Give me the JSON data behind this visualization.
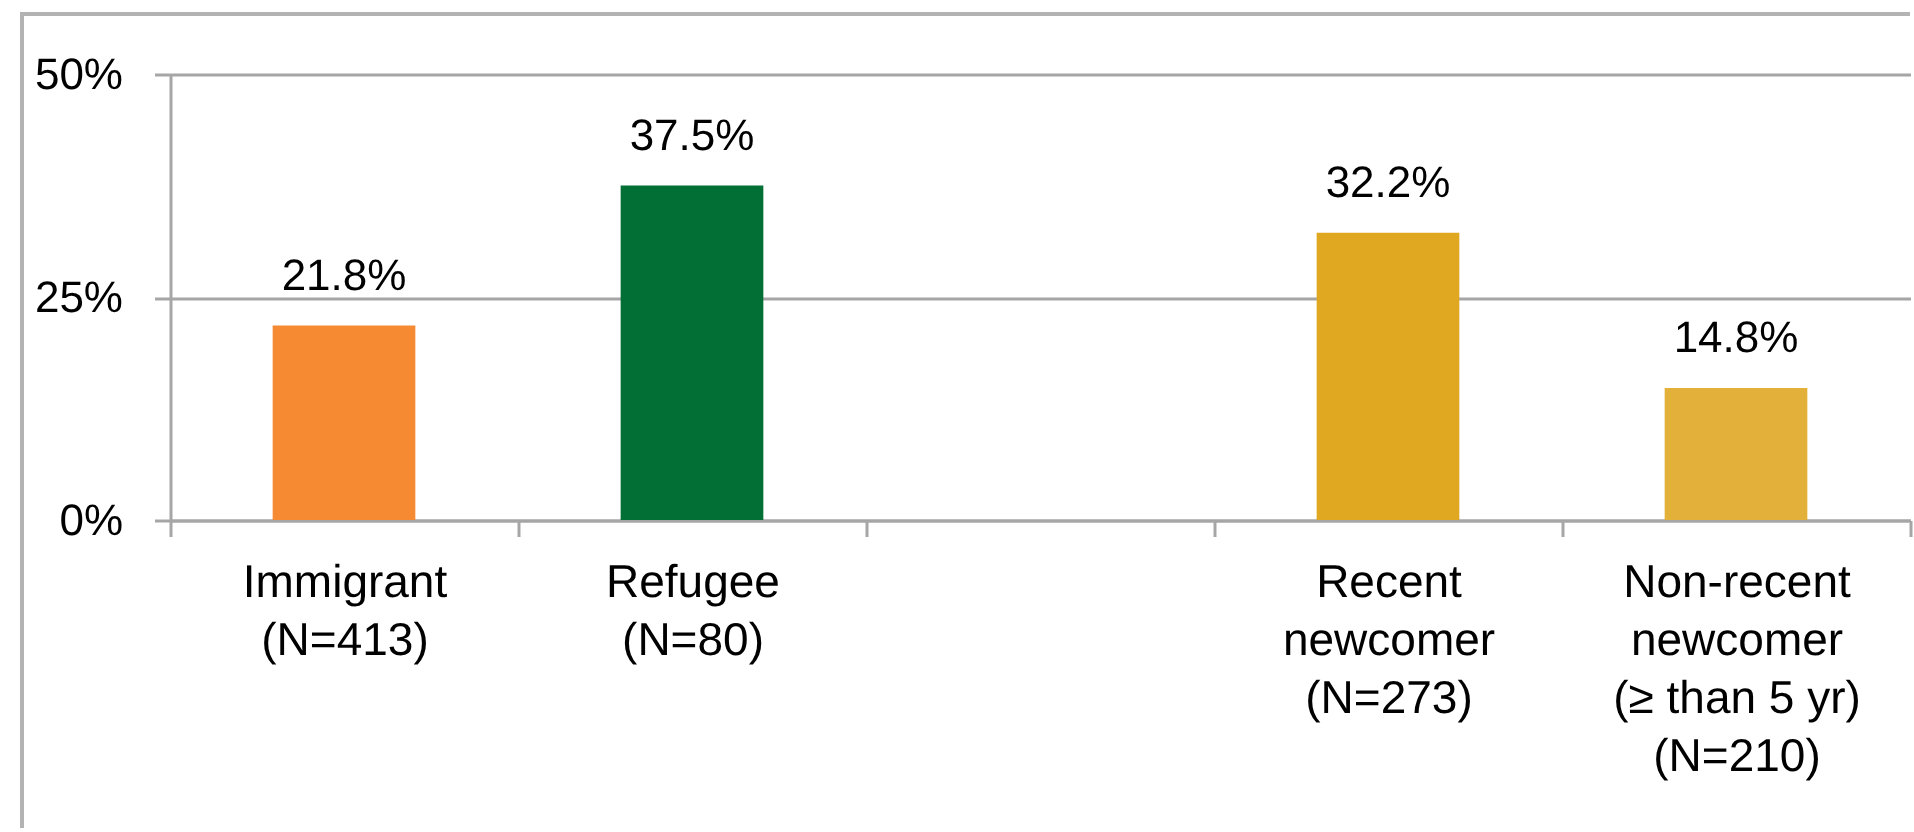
{
  "chart_data": {
    "type": "bar",
    "categories": [
      "Immigrant (N=413)",
      "Refugee (N=80)",
      null,
      "Recent newcomer (N=273)",
      "Non-recent newcomer (≥ than 5 yr) (N=210)"
    ],
    "values": [
      21.8,
      37.5,
      null,
      32.2,
      14.8
    ],
    "colors": [
      "#f68a33",
      "#026f35",
      null,
      "#e0a820",
      "#e3b03a"
    ],
    "value_labels": [
      "21.8%",
      "37.5%",
      null,
      "32.2%",
      "14.8%"
    ],
    "ylim": [
      0,
      50
    ],
    "yticks": [
      {
        "value": 0,
        "label": "0%"
      },
      {
        "value": 25,
        "label": "25%"
      },
      {
        "value": 50,
        "label": "50%"
      }
    ],
    "grid": "y"
  }
}
